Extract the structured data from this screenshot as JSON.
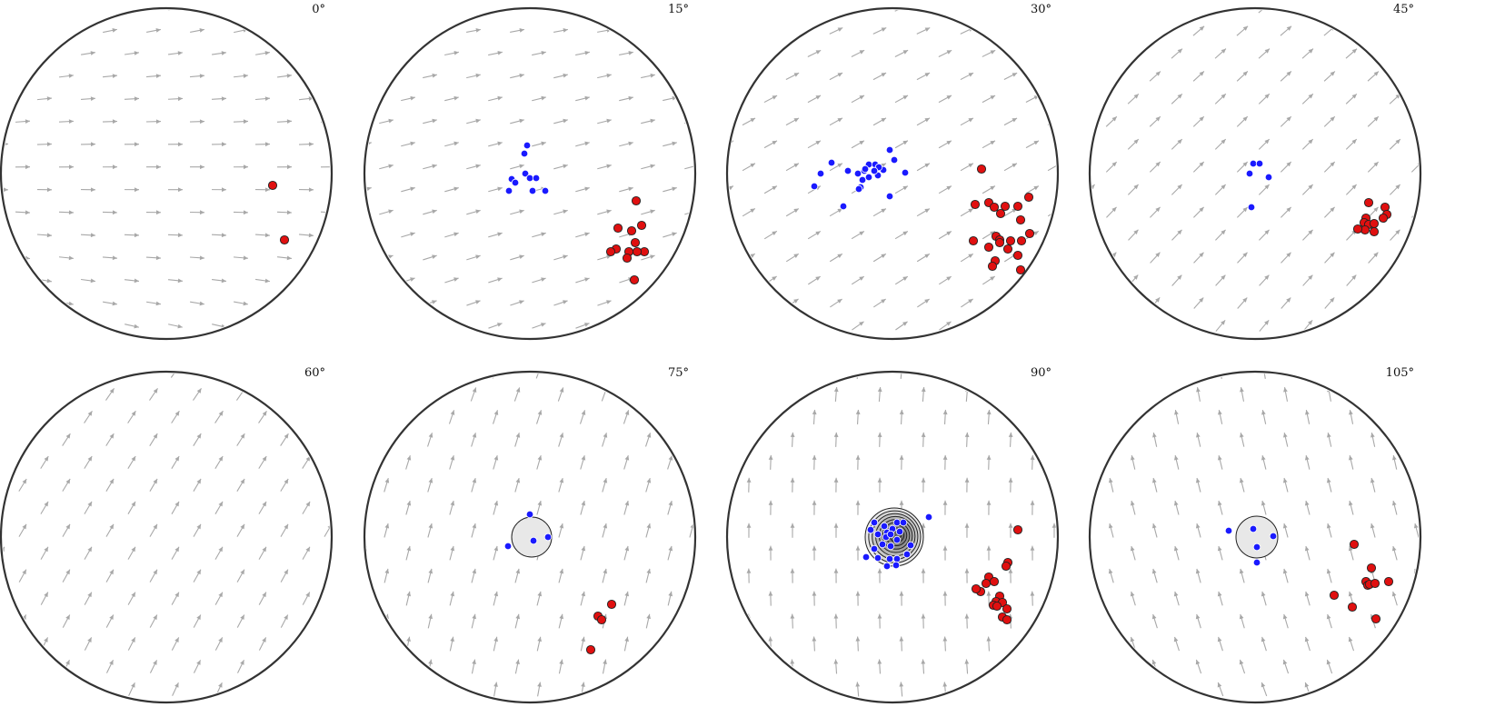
{
  "panels": [
    {
      "label": "0°",
      "angle": 0,
      "blue": [],
      "red": [
        [
          117,
          13
        ],
        [
          130,
          73
        ]
      ],
      "patch": null
    },
    {
      "label": "15°",
      "angle": 15,
      "blue": [
        [
          -3,
          -31
        ],
        [
          -6,
          -22
        ],
        [
          -20,
          6
        ],
        [
          -16,
          10
        ],
        [
          -5,
          0
        ],
        [
          0,
          5
        ],
        [
          7,
          5
        ],
        [
          3,
          19
        ],
        [
          -23,
          19
        ],
        [
          17,
          19
        ]
      ],
      "red": [
        [
          117,
          30
        ],
        [
          112,
          63
        ],
        [
          123,
          57
        ],
        [
          97,
          60
        ],
        [
          116,
          76
        ],
        [
          95,
          83
        ],
        [
          89,
          86
        ],
        [
          126,
          86
        ],
        [
          118,
          86
        ],
        [
          109,
          86
        ],
        [
          107,
          93
        ],
        [
          115,
          117
        ]
      ],
      "patch": null
    },
    {
      "label": "30°",
      "angle": 30,
      "blue": [
        [
          -67,
          -12
        ],
        [
          -79,
          0
        ],
        [
          -86,
          14
        ],
        [
          -49,
          -3
        ],
        [
          -38,
          0
        ],
        [
          -31,
          -3
        ],
        [
          -26,
          -10
        ],
        [
          -19,
          -10
        ],
        [
          -10,
          -4
        ],
        [
          -16,
          2
        ],
        [
          -30,
          -5
        ],
        [
          -26,
          4
        ],
        [
          -35,
          15
        ],
        [
          -37,
          17
        ],
        [
          -54,
          36
        ],
        [
          14,
          -1
        ],
        [
          -3,
          -26
        ],
        [
          2,
          -15
        ],
        [
          -15,
          -7
        ],
        [
          -20,
          -3
        ],
        [
          -33,
          7
        ],
        [
          -3,
          25
        ]
      ],
      "red": [
        [
          98,
          -5
        ],
        [
          106,
          32
        ],
        [
          112,
          37
        ],
        [
          91,
          34
        ],
        [
          124,
          36
        ],
        [
          119,
          44
        ],
        [
          138,
          36
        ],
        [
          150,
          26
        ],
        [
          141,
          51
        ],
        [
          151,
          66
        ],
        [
          130,
          74
        ],
        [
          142,
          74
        ],
        [
          114,
          69
        ],
        [
          118,
          73
        ],
        [
          118,
          76
        ],
        [
          89,
          74
        ],
        [
          127,
          83
        ],
        [
          106,
          81
        ],
        [
          138,
          90
        ],
        [
          141,
          106
        ],
        [
          113,
          96
        ],
        [
          110,
          102
        ]
      ],
      "patch": null
    },
    {
      "label": "45°",
      "angle": 45,
      "blue": [
        [
          -2,
          -11
        ],
        [
          5,
          -11
        ],
        [
          -6,
          0
        ],
        [
          15,
          4
        ],
        [
          -4,
          37
        ]
      ],
      "red": [
        [
          125,
          32
        ],
        [
          122,
          49
        ],
        [
          120,
          54
        ],
        [
          125,
          56
        ],
        [
          131,
          55
        ],
        [
          131,
          64
        ],
        [
          121,
          62
        ],
        [
          113,
          61
        ],
        [
          143,
          37
        ],
        [
          145,
          45
        ],
        [
          141,
          49
        ]
      ],
      "patch": null
    },
    {
      "label": "60°",
      "angle": 60,
      "blue": [],
      "red": [],
      "patch": null
    },
    {
      "label": "75°",
      "angle": 75,
      "blue": [
        [
          0,
          -25
        ],
        [
          -24,
          10
        ],
        [
          4,
          4
        ],
        [
          20,
          0
        ]
      ],
      "red": [
        [
          90,
          74
        ],
        [
          75,
          87
        ],
        [
          79,
          91
        ],
        [
          67,
          124
        ]
      ],
      "patch": {
        "r": 22,
        "levels": 1
      }
    },
    {
      "label": "90°",
      "angle": 90,
      "blue": [
        [
          -20,
          -16
        ],
        [
          -9,
          -12
        ],
        [
          5,
          -16
        ],
        [
          12,
          -16
        ],
        [
          -16,
          -3
        ],
        [
          -6,
          -5
        ],
        [
          0,
          -9
        ],
        [
          8,
          -6
        ],
        [
          -7,
          0
        ],
        [
          -2,
          -3
        ],
        [
          -11,
          8
        ],
        [
          5,
          3
        ],
        [
          -2,
          10
        ],
        [
          -20,
          13
        ],
        [
          -16,
          23
        ],
        [
          -3,
          24
        ],
        [
          5,
          24
        ],
        [
          16,
          19
        ],
        [
          20,
          9
        ],
        [
          -29,
          22
        ],
        [
          -6,
          32
        ],
        [
          4,
          31
        ],
        [
          40,
          -22
        ],
        [
          -24,
          -8
        ]
      ],
      "red": [
        [
          138,
          -8
        ],
        [
          127,
          28
        ],
        [
          125,
          32
        ],
        [
          106,
          44
        ],
        [
          112,
          49
        ],
        [
          103,
          51
        ],
        [
          97,
          60
        ],
        [
          92,
          57
        ],
        [
          118,
          65
        ],
        [
          114,
          71
        ],
        [
          121,
          72
        ],
        [
          111,
          75
        ],
        [
          126,
          79
        ],
        [
          115,
          76
        ],
        [
          121,
          88
        ],
        [
          126,
          91
        ]
      ],
      "patch": {
        "r": 32,
        "levels": 9
      }
    },
    {
      "label": "105°",
      "angle": 105,
      "blue": [
        [
          -29,
          -7
        ],
        [
          -2,
          -9
        ],
        [
          2,
          11
        ],
        [
          20,
          -1
        ],
        [
          2,
          28
        ]
      ],
      "red": [
        [
          109,
          8
        ],
        [
          128,
          34
        ],
        [
          122,
          49
        ],
        [
          124,
          53
        ],
        [
          126,
          52
        ],
        [
          132,
          51
        ],
        [
          147,
          49
        ],
        [
          87,
          64
        ],
        [
          107,
          77
        ],
        [
          133,
          90
        ]
      ],
      "patch": {
        "r": 23,
        "levels": 1
      }
    }
  ]
}
